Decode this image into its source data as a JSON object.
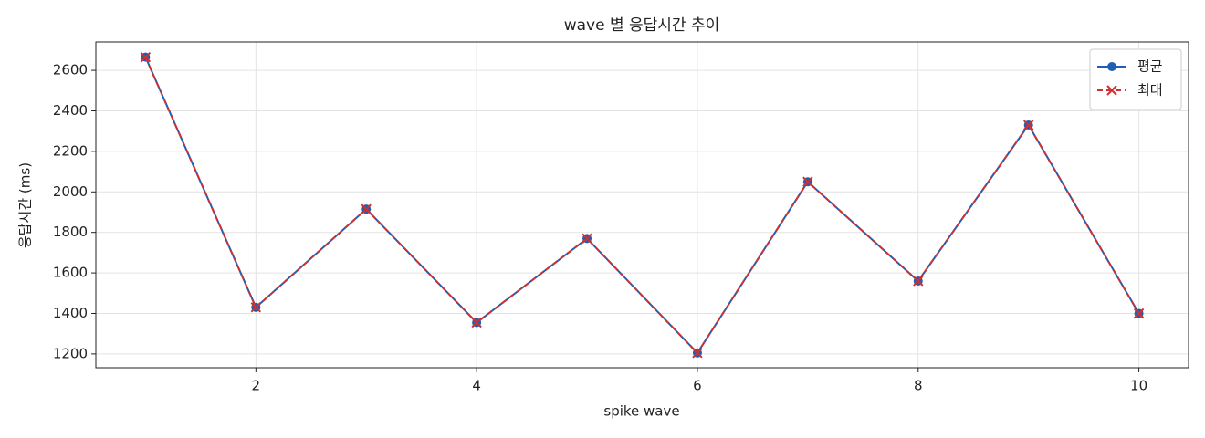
{
  "chart_data": {
    "type": "line",
    "title": "wave 별 응답시간 추이",
    "x_label": "spike wave",
    "y_label": "응답시간 (ms)",
    "x": [
      1,
      2,
      3,
      4,
      5,
      6,
      7,
      8,
      9,
      10
    ],
    "series": [
      {
        "name": "평균",
        "color": "#1f5fb4",
        "marker": "o",
        "linestyle": "solid",
        "values": [
          2665,
          1430,
          1915,
          1355,
          1770,
          1205,
          2050,
          1560,
          2330,
          1400
        ]
      },
      {
        "name": "최대",
        "color": "#d03030",
        "marker": "x",
        "linestyle": "dashed",
        "values": [
          2665,
          1430,
          1915,
          1355,
          1770,
          1205,
          2050,
          1560,
          2330,
          1400
        ]
      }
    ],
    "xlim": [
      0.55,
      10.45
    ],
    "xticks": [
      2,
      4,
      6,
      8,
      10
    ],
    "ylim": [
      1132,
      2740
    ],
    "yticks": [
      1200,
      1400,
      1600,
      1800,
      2000,
      2200,
      2400,
      2600
    ],
    "grid": true,
    "legend": "upper right"
  }
}
